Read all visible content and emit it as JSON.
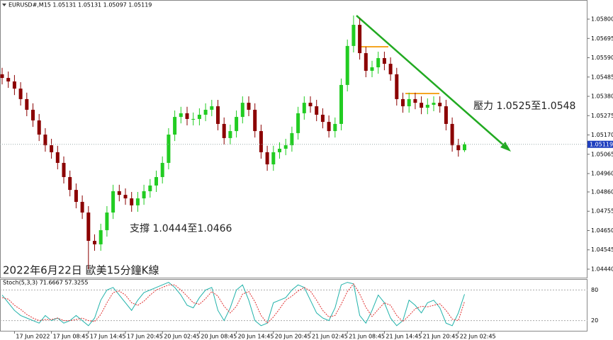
{
  "chart_data": [
    {
      "type": "candlestick",
      "title": "EURUSD#,M15  1.05131 1.05131 1.05097 1.05119",
      "annotations": [
        "壓力 1.0525至1.0548",
        "支撐 1.0444至1.0466",
        "2022年6月22日 歐美15分鐘K線"
      ],
      "price_tag": {
        "value": 1.05119,
        "label": "1.05119"
      },
      "up_color": "#22cc22",
      "down_color": "#8b0000",
      "categories": [
        null,
        null,
        "17 Jun 2022",
        null,
        null,
        null,
        null,
        null,
        "17 Jun 08:45",
        null,
        null,
        null,
        null,
        null,
        "17 Jun 14:45",
        null,
        null,
        null,
        null,
        null,
        "17 Jun 20:45",
        null,
        null,
        null,
        null,
        null,
        "20 Jun 02:45",
        null,
        null,
        null,
        null,
        null,
        "20 Jun 08:45",
        null,
        null,
        null,
        null,
        null,
        "20 Jun 14:45",
        null,
        null,
        null,
        null,
        null,
        "20 Jun 20:45",
        null,
        null,
        null,
        null,
        null,
        "21 Jun 02:45",
        null,
        null,
        null,
        null,
        null,
        "21 Jun 08:45",
        null,
        null,
        null,
        null,
        null,
        "21 Jun 14:45",
        null,
        null,
        null,
        null,
        null,
        "21 Jun 20:45",
        null,
        null,
        null,
        null,
        null,
        "22 Jun 02:45",
        null
      ],
      "open": [
        1.055,
        1.0548,
        1.05461,
        1.05422,
        1.05365,
        1.05307,
        1.05249,
        1.05172,
        1.05114,
        1.05076,
        1.05018,
        1.04941,
        1.04871,
        1.04806,
        1.04748,
        1.04594,
        1.04575,
        1.04652,
        1.04748,
        1.04864,
        1.04844,
        1.04825,
        1.04787,
        1.04825,
        1.04864,
        1.04895,
        1.04941,
        1.05018,
        1.05172,
        1.05268,
        1.05288,
        1.05257,
        1.05257,
        1.0528,
        1.05307,
        1.05326,
        1.0523,
        1.05153,
        1.05191,
        1.05268,
        1.05345,
        1.05307,
        1.05191,
        1.05076,
        1.0501,
        1.05076,
        1.05095,
        1.05114,
        1.0518,
        1.05288,
        1.05345,
        1.05326,
        1.0528,
        1.05241,
        1.05191,
        1.0523,
        1.05442,
        1.05654,
        1.05769,
        1.05615,
        1.05519,
        1.05538,
        1.05588,
        1.05557,
        1.055,
        1.05365,
        1.05326,
        1.05365,
        1.05345,
        1.05318,
        1.05334,
        1.05345,
        1.05326,
        1.0523,
        1.05114,
        1.05087
      ],
      "high": [
        1.05535,
        1.05515,
        1.05496,
        1.05457,
        1.054,
        1.05342,
        1.05284,
        1.05207,
        1.05149,
        1.05111,
        1.05053,
        1.04976,
        1.04906,
        1.04841,
        1.04783,
        1.04629,
        1.04687,
        1.04783,
        1.04899,
        1.04899,
        1.04879,
        1.0486,
        1.0486,
        1.04899,
        1.0493,
        1.04976,
        1.05053,
        1.05207,
        1.05303,
        1.05323,
        1.05323,
        1.05292,
        1.05315,
        1.05342,
        1.05361,
        1.05361,
        1.05265,
        1.05226,
        1.05303,
        1.0538,
        1.0538,
        1.05342,
        1.05226,
        1.05111,
        1.05111,
        1.0513,
        1.05149,
        1.05215,
        1.05323,
        1.0538,
        1.0538,
        1.05361,
        1.05315,
        1.05276,
        1.05265,
        1.05477,
        1.05689,
        1.0582,
        1.05804,
        1.0565,
        1.05573,
        1.05623,
        1.05623,
        1.05592,
        1.05535,
        1.054,
        1.054,
        1.054,
        1.0538,
        1.05369,
        1.0538,
        1.0538,
        1.05361,
        1.05265,
        1.05149,
        1.05131
      ],
      "low": [
        1.05445,
        1.05426,
        1.05387,
        1.0533,
        1.05272,
        1.05214,
        1.05137,
        1.05079,
        1.05041,
        1.04983,
        1.04906,
        1.04836,
        1.04771,
        1.04713,
        1.0444,
        1.0454,
        1.0454,
        1.04617,
        1.04713,
        1.04809,
        1.0479,
        1.04752,
        1.04752,
        1.0479,
        1.04829,
        1.0486,
        1.04906,
        1.04983,
        1.05137,
        1.05233,
        1.05222,
        1.05222,
        1.05222,
        1.05245,
        1.05272,
        1.05195,
        1.05118,
        1.05118,
        1.05156,
        1.05233,
        1.05272,
        1.05156,
        1.05041,
        1.04975,
        1.04975,
        1.05041,
        1.0506,
        1.05079,
        1.05145,
        1.05253,
        1.05291,
        1.05245,
        1.05206,
        1.05156,
        1.05156,
        1.05195,
        1.05407,
        1.05619,
        1.0558,
        1.05484,
        1.05484,
        1.05503,
        1.05522,
        1.05465,
        1.0533,
        1.05291,
        1.05291,
        1.0531,
        1.05283,
        1.05283,
        1.05299,
        1.05291,
        1.05195,
        1.05079,
        1.05052,
        1.05077
      ],
      "close": [
        1.0548,
        1.05461,
        1.05422,
        1.05365,
        1.05307,
        1.05249,
        1.05172,
        1.05114,
        1.05076,
        1.05018,
        1.04941,
        1.04871,
        1.04806,
        1.04748,
        1.04594,
        1.04575,
        1.04652,
        1.04748,
        1.04864,
        1.04844,
        1.04825,
        1.04787,
        1.04825,
        1.04864,
        1.04895,
        1.04941,
        1.05018,
        1.05172,
        1.05268,
        1.05288,
        1.05257,
        1.05257,
        1.0528,
        1.05307,
        1.05326,
        1.0523,
        1.05153,
        1.05191,
        1.05268,
        1.05345,
        1.05307,
        1.05191,
        1.05076,
        1.0501,
        1.05076,
        1.05095,
        1.05114,
        1.0518,
        1.05288,
        1.05345,
        1.05326,
        1.0528,
        1.05241,
        1.05191,
        1.0523,
        1.05442,
        1.05654,
        1.05769,
        1.05615,
        1.05519,
        1.05538,
        1.05588,
        1.05557,
        1.055,
        1.05365,
        1.05326,
        1.05365,
        1.05345,
        1.05318,
        1.05334,
        1.05345,
        1.05326,
        1.0523,
        1.05114,
        1.05087,
        1.05119
      ],
      "ylim": [
        1.043937,
        1.058925
      ],
      "yticks": [
        {
          "value": 1.058,
          "label": "1.05800"
        },
        1.05695,
        {
          "value": 1.0559,
          "label": "1.05590"
        },
        1.05485,
        {
          "value": 1.0538,
          "label": "1.05380"
        },
        1.05275,
        {
          "value": 1.0517,
          "label": "1.05170"
        },
        1.05065,
        {
          "value": 1.0496,
          "label": "1.04960"
        },
        {
          "value": 1.0486,
          "label": "1.04860"
        },
        1.04755,
        {
          "value": 1.0465,
          "label": "1.04650"
        },
        1.04545,
        {
          "value": 1.0444,
          "label": "1.04440"
        }
      ]
    },
    {
      "type": "line",
      "title": "Stoch(5,3,3) 71.6667 57.3255",
      "series": [
        {
          "color": "#20b2aa",
          "values": [
            70,
            55,
            40,
            30,
            25,
            20,
            15,
            30,
            20,
            25,
            15,
            20,
            30,
            20,
            10,
            25,
            60,
            80,
            85,
            70,
            55,
            40,
            60,
            75,
            80,
            85,
            90,
            95,
            85,
            70,
            50,
            45,
            65,
            80,
            85,
            40,
            20,
            45,
            80,
            90,
            60,
            20,
            10,
            15,
            55,
            60,
            65,
            80,
            90,
            85,
            60,
            35,
            25,
            20,
            45,
            90,
            95,
            92,
            30,
            15,
            40,
            70,
            55,
            25,
            10,
            20,
            60,
            50,
            35,
            55,
            60,
            45,
            15,
            10,
            35,
            71.6667
          ]
        },
        {
          "color": "#e03030",
          "values": [
            65,
            62,
            50,
            42,
            32,
            25,
            20,
            22,
            22,
            25,
            20,
            20,
            22,
            25,
            20,
            18,
            32,
            55,
            75,
            78,
            70,
            55,
            50,
            58,
            70,
            80,
            85,
            90,
            90,
            80,
            68,
            55,
            52,
            63,
            77,
            68,
            48,
            35,
            48,
            72,
            77,
            57,
            30,
            15,
            27,
            43,
            60,
            68,
            78,
            85,
            78,
            60,
            40,
            27,
            30,
            52,
            77,
            92,
            72,
            46,
            28,
            42,
            55,
            50,
            30,
            18,
            30,
            43,
            48,
            47,
            50,
            53,
            40,
            23,
            20,
            57.3255
          ]
        }
      ],
      "ylim": [
        0,
        100
      ],
      "yticks": [
        80,
        20
      ]
    }
  ]
}
